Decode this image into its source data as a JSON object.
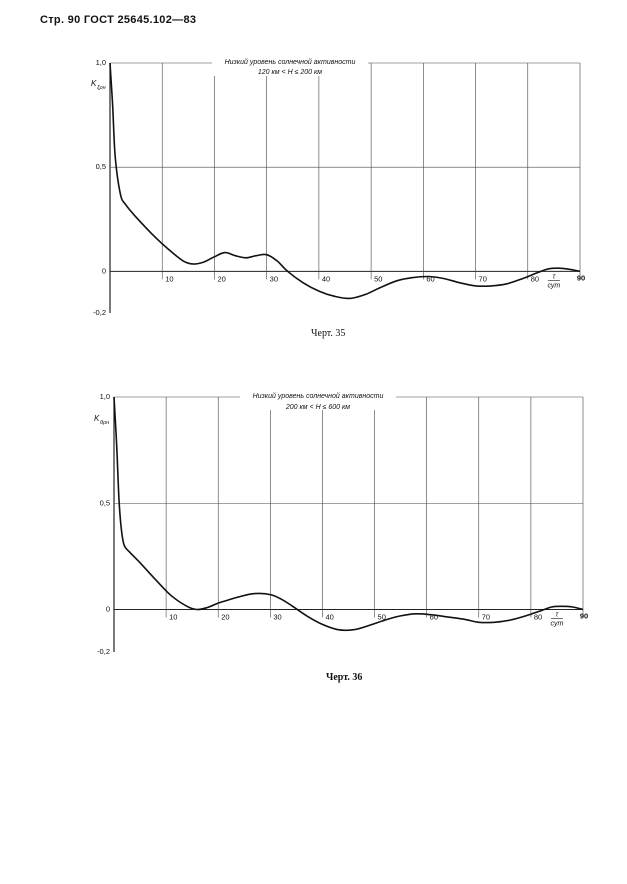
{
  "page": {
    "header": "Стр. 90 ГОСТ 25645.102—83"
  },
  "charts": [
    {
      "caption": "Черт. 35",
      "ylabel": "K_{ξρ_н}",
      "ylabel_main": "K",
      "ylabel_sub": "ξρн",
      "annotation_line1": "Низкий уровень солнечной активности",
      "annotation_line2": "120 км < H ≤ 200 км",
      "xunit_top": "τ",
      "xunit_bottom": "сут"
    },
    {
      "caption": "Черт. 36",
      "ylabel": "K_{θρ_н}",
      "ylabel_main": "K",
      "ylabel_sub": "θρн",
      "annotation_line1": "Низкий уровень солнечной активности",
      "annotation_line2": "200 км < H ≤ 600 км",
      "xunit_top": "τ",
      "xunit_bottom": "сут"
    }
  ],
  "chart_data": [
    {
      "type": "line",
      "title": "",
      "xlabel": "τ, сут",
      "ylabel": "K",
      "xlim": [
        0,
        90
      ],
      "ylim": [
        -0.2,
        1.0
      ],
      "xticks": [
        "10",
        "20",
        "30",
        "40",
        "50",
        "60",
        "70",
        "80",
        "90"
      ],
      "yticks": [
        "1,0",
        "0,5",
        "0",
        "-0,2"
      ],
      "grid": true,
      "x": [
        0,
        0.5,
        1,
        2,
        3,
        5,
        8,
        11,
        14,
        16,
        18,
        20,
        22,
        24,
        26,
        28,
        30,
        32,
        34,
        37,
        40,
        43,
        46,
        49,
        52,
        55,
        58,
        61,
        64,
        67,
        70,
        73,
        76,
        79,
        82,
        84,
        86,
        88,
        90
      ],
      "series": [
        {
          "values": [
            1.0,
            0.8,
            0.55,
            0.37,
            0.32,
            0.26,
            0.18,
            0.11,
            0.05,
            0.035,
            0.045,
            0.07,
            0.09,
            0.075,
            0.065,
            0.075,
            0.08,
            0.05,
            0.0,
            -0.055,
            -0.095,
            -0.12,
            -0.13,
            -0.11,
            -0.075,
            -0.045,
            -0.03,
            -0.025,
            -0.035,
            -0.055,
            -0.07,
            -0.07,
            -0.06,
            -0.035,
            -0.005,
            0.012,
            0.015,
            0.01,
            0.0
          ]
        }
      ]
    },
    {
      "type": "line",
      "title": "",
      "xlabel": "τ, сут",
      "ylabel": "K",
      "xlim": [
        0,
        90
      ],
      "ylim": [
        -0.2,
        1.0
      ],
      "xticks": [
        "10",
        "20",
        "30",
        "40",
        "50",
        "60",
        "70",
        "80",
        "90"
      ],
      "yticks": [
        "1,0",
        "0,5",
        "0",
        "-0,2"
      ],
      "grid": true,
      "x": [
        0,
        0.5,
        1,
        1.5,
        2,
        3,
        5,
        8,
        11,
        14,
        16,
        18,
        20,
        22,
        24,
        27,
        30,
        32,
        34,
        37,
        40,
        43,
        46,
        49,
        52,
        55,
        58,
        61,
        64,
        67,
        70,
        73,
        76,
        79,
        82,
        84,
        86,
        88,
        90
      ],
      "series": [
        {
          "values": [
            1.0,
            0.78,
            0.5,
            0.36,
            0.3,
            0.27,
            0.22,
            0.14,
            0.065,
            0.015,
            0.0,
            0.01,
            0.03,
            0.045,
            0.06,
            0.075,
            0.07,
            0.05,
            0.02,
            -0.03,
            -0.07,
            -0.095,
            -0.095,
            -0.075,
            -0.05,
            -0.03,
            -0.02,
            -0.025,
            -0.035,
            -0.045,
            -0.06,
            -0.06,
            -0.05,
            -0.03,
            -0.005,
            0.012,
            0.015,
            0.012,
            0.0
          ]
        }
      ]
    }
  ]
}
